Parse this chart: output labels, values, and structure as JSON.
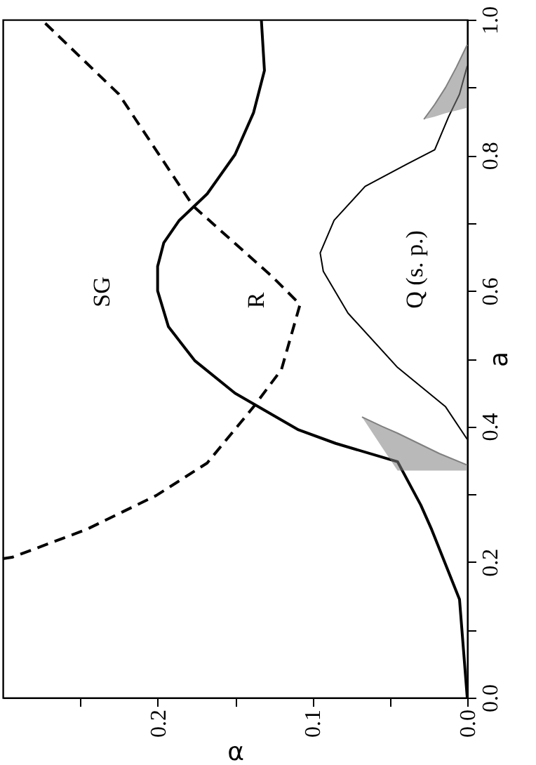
{
  "chart_data": {
    "type": "line",
    "xlabel": "α",
    "ylabel": "a",
    "xlim": [
      0.3,
      0
    ],
    "xticks": [
      {
        "value": 0.25,
        "label": null
      },
      0.2,
      {
        "value": 0.15,
        "label": null
      },
      0.1,
      {
        "value": 0.05,
        "label": null
      },
      {
        "value": 0,
        "label": "0.0"
      }
    ],
    "ylim": [
      0,
      1
    ],
    "yticks": [
      {
        "value": 0,
        "label": "0.0"
      },
      {
        "value": 0.1,
        "label": null
      },
      0.2,
      {
        "value": 0.3,
        "label": null
      },
      0.4,
      {
        "value": 0.5,
        "label": null
      },
      0.6,
      {
        "value": 0.7,
        "label": null
      },
      0.8,
      {
        "value": 0.9,
        "label": null
      },
      {
        "value": 1,
        "label": "1.0"
      }
    ],
    "grid": false,
    "marker": "none",
    "series": [
      {
        "color": "#000000",
        "line_style": "solid",
        "x": [
          0,
          0.005,
          0.023,
          0.03,
          0.045,
          0.085,
          0.109,
          0.15,
          0.176,
          0.193,
          0.2,
          0.2,
          0.196,
          0.186,
          0.168,
          0.15,
          0.138,
          0.131,
          0.133
        ],
        "values": [
          0,
          0.145,
          0.248,
          0.284,
          0.348,
          0.375,
          0.395,
          0.449,
          0.497,
          0.547,
          0.6,
          0.636,
          0.671,
          0.704,
          0.743,
          0.801,
          0.863,
          0.925,
          1.0
        ]
      },
      {
        "color": "#000000",
        "line_style": "dashed",
        "x": [
          0.3,
          0.294,
          0.246,
          0.201,
          0.168,
          0.138,
          0.12,
          0.108,
          0.126,
          0.177,
          0.225,
          0.275
        ],
        "values": [
          0.205,
          0.207,
          0.248,
          0.298,
          0.346,
          0.429,
          0.484,
          0.58,
          0.621,
          0.725,
          0.89,
          1.0
        ]
      },
      {
        "color": "#000000",
        "line_style": "solid",
        "x": [
          0,
          0.014,
          0.045,
          0.077,
          0.093,
          0.095,
          0.086,
          0.066,
          0.039,
          0.021,
          0.012,
          0.005,
          0
        ],
        "values": [
          0.381,
          0.429,
          0.487,
          0.567,
          0.629,
          0.656,
          0.704,
          0.754,
          0.787,
          0.808,
          0.857,
          0.89,
          0.932
        ]
      },
      {
        "color": "#808080",
        "line_style": "solid",
        "x": [
          0,
          0.018,
          0.045,
          0.055,
          0.068
        ],
        "values": [
          0.343,
          0.36,
          0.39,
          0.4,
          0.414
        ],
        "lower": [
          0.335,
          0.335,
          0.335,
          0.369,
          0.414
        ],
        "upper": [
          0.343,
          0.36,
          0.39,
          0.4,
          0.414
        ]
      },
      {
        "color": "#808080",
        "line_style": "solid",
        "x": [
          0,
          0.007,
          0.014,
          0.021,
          0.028
        ],
        "values": [
          0.963,
          0.93,
          0.9,
          0.875,
          0.853
        ],
        "lower": [
          0.87,
          0.866,
          0.862,
          0.857,
          0.853
        ],
        "upper": [
          0.963,
          0.93,
          0.9,
          0.875,
          0.853
        ]
      }
    ],
    "annotations": [
      "SG",
      "R",
      "Q (s. p.)"
    ]
  }
}
